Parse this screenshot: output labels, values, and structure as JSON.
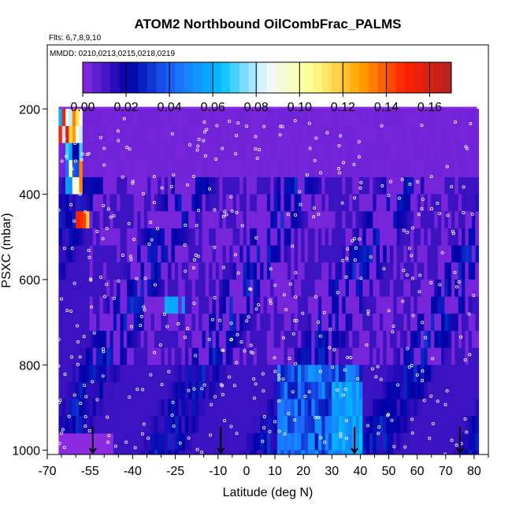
{
  "chart_data": {
    "type": "heatmap",
    "title": "ATOM2 Northbound OilCombFrac_PALMS",
    "annotations": [
      "Flts: 6,7,8,9,10",
      "MMDD: 0210,0213,0215,0218,0219"
    ],
    "xlabel": "Latitude (deg N)",
    "ylabel": "PSXC (mbar)",
    "xlim": [
      -70,
      85
    ],
    "ylim": [
      1010,
      50
    ],
    "y_reversed": true,
    "x_ticks": [
      -70,
      -55,
      -40,
      -25,
      -10,
      0,
      10,
      20,
      30,
      40,
      50,
      60,
      70,
      80
    ],
    "x_tick_labels": [
      "-70",
      "-55",
      "-40",
      "-25",
      "-10",
      "0",
      "10",
      "20",
      "30",
      "40",
      "50",
      "60",
      "70",
      "80"
    ],
    "x_minor_ticks": [
      -65,
      -60,
      -50,
      -45,
      -35,
      -30,
      -20,
      -15,
      -5,
      5,
      15,
      25,
      35,
      45,
      55,
      65,
      75,
      85
    ],
    "y_ticks": [
      200,
      400,
      600,
      800,
      1000
    ],
    "y_tick_labels": [
      "200",
      "400",
      "600",
      "800",
      "1000"
    ],
    "colorbar": {
      "min": 0,
      "max": 0.17,
      "ticks": [
        0,
        0.02,
        0.04,
        0.06,
        0.08,
        0.1,
        0.12,
        0.14,
        0.16
      ],
      "tick_labels": [
        "0.00",
        "0.02",
        "0.04",
        "0.06",
        "0.08",
        "0.10",
        "0.12",
        "0.14",
        "0.16"
      ],
      "colors": [
        "#8a2be2",
        "#0000a8",
        "#1e6cff",
        "#00bfff",
        "#f0f8ff",
        "#ffff90",
        "#ffa500",
        "#ff2000",
        "#b22222"
      ]
    },
    "background_color": "#8a2be2",
    "marker_color": "#ffffff",
    "descent_arrow_latitudes": [
      -54,
      -9,
      38,
      75
    ],
    "grid": false,
    "legend": "colorbar-top"
  }
}
